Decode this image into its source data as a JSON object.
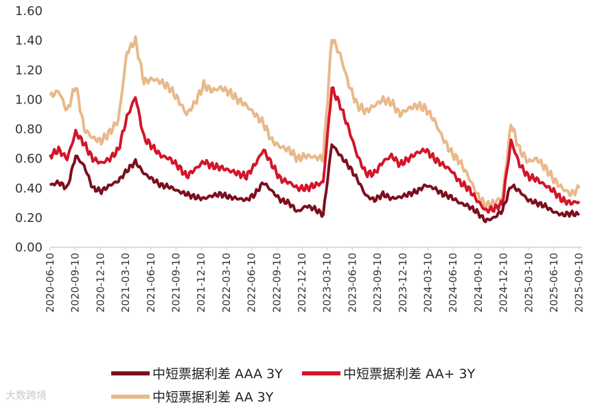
{
  "chart_data": {
    "type": "line",
    "title": "",
    "xlabel": "",
    "ylabel": "",
    "ylim": [
      0,
      1.6
    ],
    "y_ticks": [
      "0.00",
      "0.20",
      "0.40",
      "0.60",
      "0.80",
      "1.00",
      "1.20",
      "1.40",
      "1.60"
    ],
    "x_ticks": [
      "2020-06-10",
      "2020-09-10",
      "2020-12-10",
      "2021-03-10",
      "2021-06-10",
      "2021-09-10",
      "2021-12-10",
      "2022-03-10",
      "2022-06-10",
      "2022-09-10",
      "2022-12-10",
      "2023-03-10",
      "2023-06-10",
      "2023-09-10",
      "2023-12-10",
      "2024-03-10",
      "2024-06-10",
      "2024-09-10",
      "2024-12-10",
      "2025-03-10",
      "2025-06-10",
      "2025-09-10"
    ],
    "grid": false,
    "legend_position": "bottom",
    "series": [
      {
        "name": "中短票据利差 AAA 3Y",
        "color": "#7b0f1e",
        "values": [
          0.42,
          0.44,
          0.4,
          0.62,
          0.55,
          0.4,
          0.38,
          0.42,
          0.45,
          0.52,
          0.58,
          0.5,
          0.46,
          0.42,
          0.41,
          0.38,
          0.36,
          0.34,
          0.33,
          0.35,
          0.36,
          0.34,
          0.33,
          0.32,
          0.36,
          0.44,
          0.38,
          0.32,
          0.3,
          0.24,
          0.28,
          0.26,
          0.22,
          0.7,
          0.62,
          0.55,
          0.46,
          0.35,
          0.32,
          0.36,
          0.33,
          0.34,
          0.36,
          0.38,
          0.42,
          0.4,
          0.36,
          0.34,
          0.3,
          0.28,
          0.24,
          0.18,
          0.2,
          0.25,
          0.42,
          0.38,
          0.32,
          0.3,
          0.28,
          0.24,
          0.22,
          0.23,
          0.22
        ]
      },
      {
        "name": "中短票据利差 AA+ 3Y",
        "color": "#d3152a",
        "values": [
          0.62,
          0.66,
          0.6,
          0.78,
          0.7,
          0.6,
          0.57,
          0.6,
          0.66,
          0.88,
          1.02,
          0.74,
          0.68,
          0.62,
          0.6,
          0.55,
          0.48,
          0.53,
          0.58,
          0.55,
          0.54,
          0.52,
          0.5,
          0.48,
          0.56,
          0.66,
          0.56,
          0.46,
          0.44,
          0.4,
          0.4,
          0.42,
          0.44,
          1.08,
          0.96,
          0.8,
          0.62,
          0.5,
          0.5,
          0.58,
          0.62,
          0.56,
          0.6,
          0.64,
          0.66,
          0.6,
          0.56,
          0.52,
          0.44,
          0.4,
          0.32,
          0.25,
          0.26,
          0.3,
          0.72,
          0.56,
          0.48,
          0.46,
          0.42,
          0.38,
          0.32,
          0.3,
          0.31
        ]
      },
      {
        "name": "中短票据利差 AA 3Y",
        "color": "#e8b98a",
        "values": [
          1.02,
          1.06,
          0.92,
          1.1,
          0.8,
          0.74,
          0.72,
          0.78,
          0.86,
          1.32,
          1.4,
          1.12,
          1.14,
          1.12,
          1.08,
          1.0,
          0.9,
          0.98,
          1.1,
          1.06,
          1.08,
          1.05,
          1.0,
          0.96,
          0.9,
          0.84,
          0.72,
          0.68,
          0.66,
          0.6,
          0.62,
          0.61,
          0.6,
          1.42,
          1.3,
          1.1,
          0.96,
          0.92,
          0.96,
          1.0,
          0.98,
          0.9,
          0.94,
          0.96,
          0.94,
          0.86,
          0.74,
          0.64,
          0.58,
          0.48,
          0.36,
          0.28,
          0.3,
          0.34,
          0.84,
          0.66,
          0.58,
          0.6,
          0.54,
          0.46,
          0.4,
          0.36,
          0.4
        ]
      }
    ]
  },
  "watermark": "大数跨境"
}
